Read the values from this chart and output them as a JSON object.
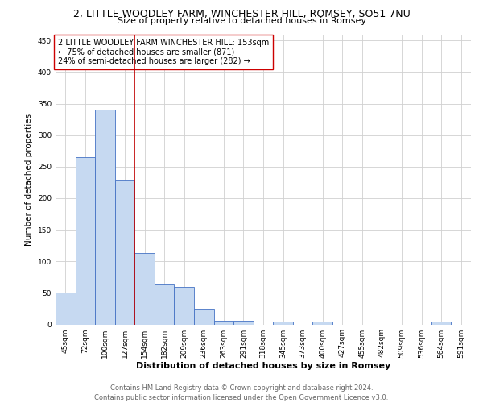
{
  "title": "2, LITTLE WOODLEY FARM, WINCHESTER HILL, ROMSEY, SO51 7NU",
  "subtitle": "Size of property relative to detached houses in Romsey",
  "xlabel": "Distribution of detached houses by size in Romsey",
  "ylabel": "Number of detached properties",
  "categories": [
    "45sqm",
    "72sqm",
    "100sqm",
    "127sqm",
    "154sqm",
    "182sqm",
    "209sqm",
    "236sqm",
    "263sqm",
    "291sqm",
    "318sqm",
    "345sqm",
    "373sqm",
    "400sqm",
    "427sqm",
    "455sqm",
    "482sqm",
    "509sqm",
    "536sqm",
    "564sqm",
    "591sqm"
  ],
  "values": [
    50,
    265,
    340,
    230,
    113,
    65,
    60,
    25,
    6,
    6,
    0,
    4,
    0,
    4,
    0,
    0,
    0,
    0,
    0,
    4,
    0
  ],
  "bar_color": "#c6d9f1",
  "bar_edgecolor": "#4472c4",
  "vline_color": "#c00000",
  "vline_index": 3.5,
  "ylim": [
    0,
    460
  ],
  "yticks": [
    0,
    50,
    100,
    150,
    200,
    250,
    300,
    350,
    400,
    450
  ],
  "annotation_text": "2 LITTLE WOODLEY FARM WINCHESTER HILL: 153sqm\n← 75% of detached houses are smaller (871)\n24% of semi-detached houses are larger (282) →",
  "footer_line1": "Contains HM Land Registry data © Crown copyright and database right 2024.",
  "footer_line2": "Contains public sector information licensed under the Open Government Licence v3.0.",
  "background_color": "#ffffff",
  "grid_color": "#d0d0d0",
  "title_fontsize": 9,
  "subtitle_fontsize": 8,
  "xlabel_fontsize": 8,
  "ylabel_fontsize": 7.5,
  "tick_fontsize": 6.5,
  "annotation_fontsize": 7,
  "footer_fontsize": 6
}
